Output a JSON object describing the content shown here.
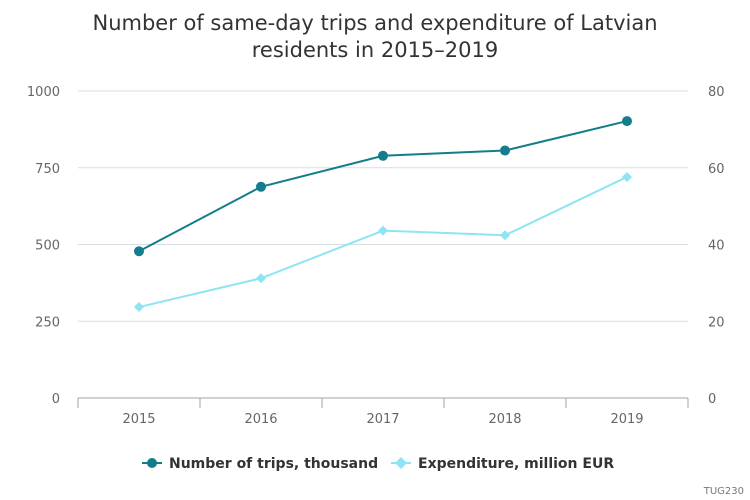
{
  "chart_data": {
    "type": "line",
    "title_lines": [
      "Number of same-day trips and expenditure of Latvian",
      "residents in 2015–2019"
    ],
    "categories": [
      "2015",
      "2016",
      "2017",
      "2018",
      "2019"
    ],
    "y_left": {
      "ylim": [
        0,
        1000
      ],
      "ticks": [
        "0",
        "250",
        "500",
        "750",
        "1000"
      ]
    },
    "y_right": {
      "ylim": [
        0,
        80
      ],
      "ticks": [
        "0",
        "20",
        "40",
        "60",
        "80"
      ]
    },
    "series": [
      {
        "name": "Number of trips, thousand",
        "axis": "left",
        "marker": "circle",
        "color": "#147D8C",
        "values": [
          478,
          688,
          789,
          806,
          902
        ]
      },
      {
        "name": "Expenditure, million EUR",
        "axis": "right",
        "marker": "diamond",
        "color": "#8EE4F2",
        "values": [
          23.7,
          31.2,
          43.6,
          42.4,
          57.6
        ]
      }
    ],
    "grid": true,
    "legend_position": "bottom",
    "credit": "TUG230"
  }
}
